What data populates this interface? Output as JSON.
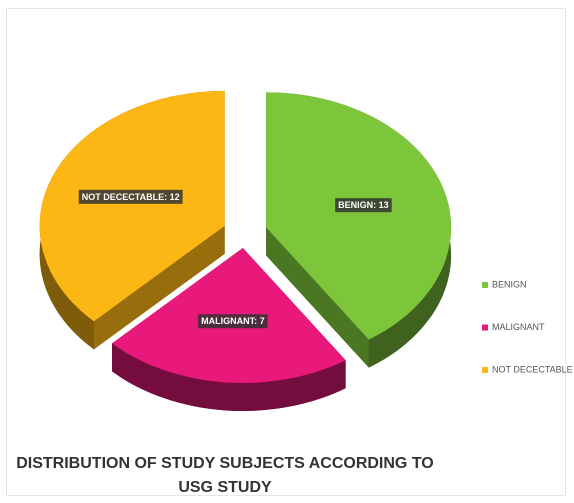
{
  "chart_data": {
    "type": "pie",
    "title": "DISTRIBUTION OF STUDY SUBJECTS ACCORDING TO USG STUDY",
    "categories": [
      "BENIGN",
      "MALIGNANT",
      "NOT DECECTABLE"
    ],
    "values": [
      13,
      7,
      12
    ],
    "value_labels": [
      "BENIGN: 13",
      "MALIGNANT: 7",
      "NOT DECECTABLE: 12"
    ],
    "colors": [
      "#7dc63b",
      "#e8197b",
      "#fdb714"
    ],
    "legend": "right"
  }
}
